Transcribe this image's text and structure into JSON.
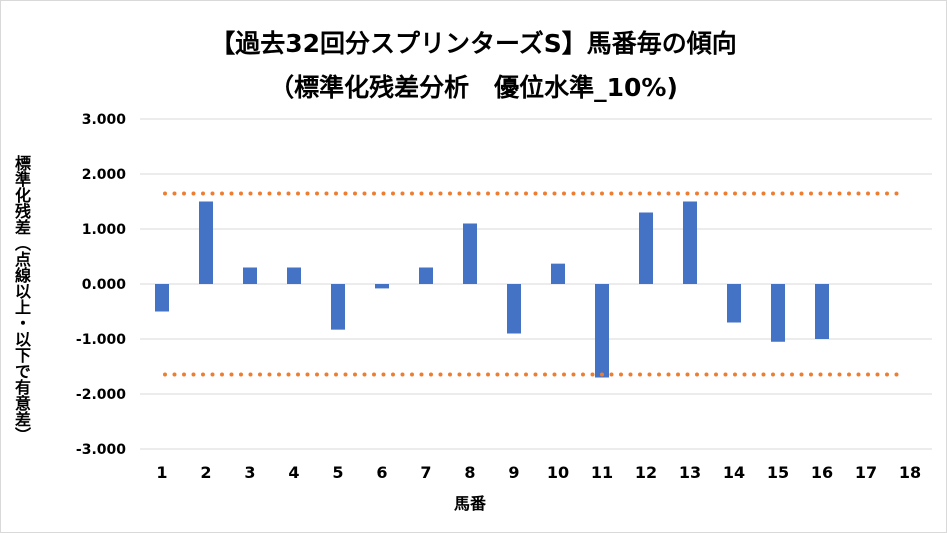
{
  "chart_data": {
    "type": "bar",
    "title": "【過去32回分スプリンターズS】馬番毎の傾向",
    "subtitle": "（標準化残差分析　優位水準_10%)",
    "ylabel": "標準化残差（点線以上・以下で有意差）",
    "xlabel": "馬番",
    "categories": [
      "1",
      "2",
      "3",
      "4",
      "5",
      "6",
      "7",
      "8",
      "9",
      "10",
      "11",
      "12",
      "13",
      "14",
      "15",
      "16",
      "17",
      "18"
    ],
    "values": [
      -0.5,
      1.5,
      0.3,
      0.3,
      -0.83,
      -0.08,
      0.3,
      1.1,
      -0.9,
      0.37,
      -1.7,
      1.3,
      1.5,
      -0.7,
      -1.05,
      -1.0,
      null,
      null
    ],
    "ylim": [
      -3,
      3
    ],
    "yticks": [
      "3.000",
      "2.000",
      "1.000",
      "0.000",
      "-1.000",
      "-2.000",
      "-3.000"
    ],
    "ytick_values": [
      3,
      2,
      1,
      0,
      -1,
      -2,
      -3
    ],
    "threshold_lines": [
      1.645,
      -1.645
    ],
    "grid": true,
    "colors": {
      "bar": "#4472c4",
      "threshold": "#ed7d31",
      "grid": "#d9d9d9"
    }
  }
}
